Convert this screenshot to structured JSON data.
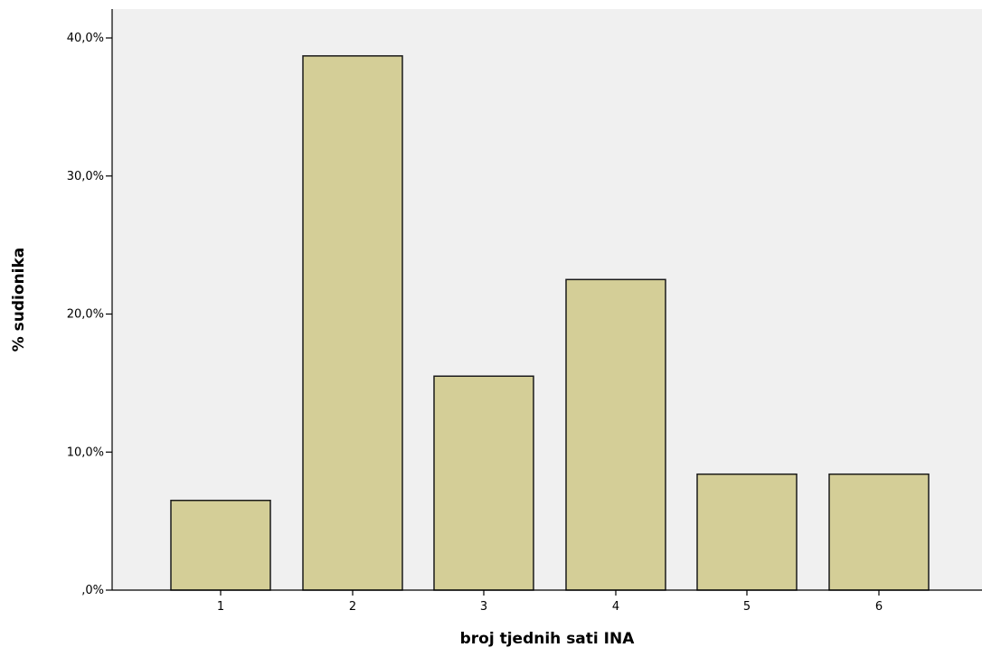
{
  "chart_data": {
    "type": "bar",
    "title": "",
    "xlabel": "broj tjednih sati INA",
    "ylabel": "% sudionika",
    "categories": [
      "1",
      "2",
      "3",
      "4",
      "5",
      "6"
    ],
    "values": [
      6.5,
      38.7,
      15.5,
      22.5,
      8.4,
      8.4
    ],
    "ylim": [
      0,
      40
    ],
    "yticks": [
      0,
      10,
      20,
      30,
      40
    ],
    "ytick_labels": [
      ",0%",
      "10,0%",
      "20,0%",
      "30,0%",
      "40,0%"
    ],
    "grid": false,
    "colors": {
      "plot_background": "#f0f0f0",
      "bar_fill": "#d4ce97",
      "bar_stroke": "#1a1a1a",
      "axis": "#000000"
    }
  }
}
